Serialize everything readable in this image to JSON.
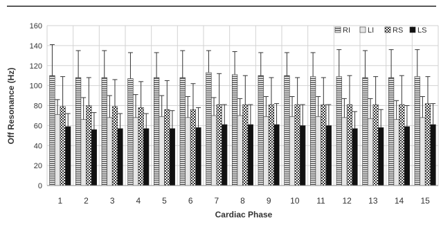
{
  "chart_data": {
    "type": "bar",
    "ylabel": "Off Resonance (Hz)",
    "xlabel": "Cardiac Phase",
    "ylim": [
      0,
      160
    ],
    "yticks": [
      0,
      20,
      40,
      60,
      80,
      100,
      120,
      140,
      160
    ],
    "grid": true,
    "legend_position": "top-right",
    "categories": [
      "1",
      "2",
      "3",
      "4",
      "5",
      "6",
      "7",
      "8",
      "9",
      "10",
      "11",
      "12",
      "13",
      "14",
      "15"
    ],
    "series": [
      {
        "name": "RI",
        "pattern": "horizontal-stripes",
        "values": [
          110,
          108,
          108,
          107,
          108,
          108,
          113,
          111,
          110,
          110,
          109,
          109,
          108,
          108,
          109
        ],
        "errors": [
          31,
          27,
          27,
          26,
          25,
          27,
          22,
          23,
          23,
          23,
          24,
          27,
          27,
          28,
          27
        ]
      },
      {
        "name": "LI",
        "pattern": "light-gray",
        "values": [
          71,
          66,
          68,
          68,
          69,
          68,
          70,
          70,
          69,
          69,
          69,
          68,
          67,
          66,
          68
        ],
        "errors": [
          15,
          22,
          22,
          23,
          21,
          21,
          18,
          17,
          20,
          20,
          20,
          19,
          20,
          19,
          21
        ]
      },
      {
        "name": "RS",
        "pattern": "checkered",
        "values": [
          79,
          80,
          79,
          78,
          76,
          76,
          81,
          81,
          81,
          81,
          81,
          81,
          81,
          81,
          82
        ],
        "errors": [
          30,
          28,
          27,
          26,
          29,
          26,
          31,
          29,
          27,
          27,
          27,
          29,
          28,
          29,
          27
        ]
      },
      {
        "name": "LS",
        "pattern": "solid-black",
        "values": [
          59,
          56,
          57,
          57,
          57,
          58,
          61,
          61,
          61,
          60,
          60,
          57,
          58,
          59,
          61
        ],
        "errors": [
          13,
          17,
          15,
          15,
          18,
          20,
          20,
          20,
          21,
          21,
          21,
          17,
          18,
          21,
          21
        ]
      }
    ]
  }
}
